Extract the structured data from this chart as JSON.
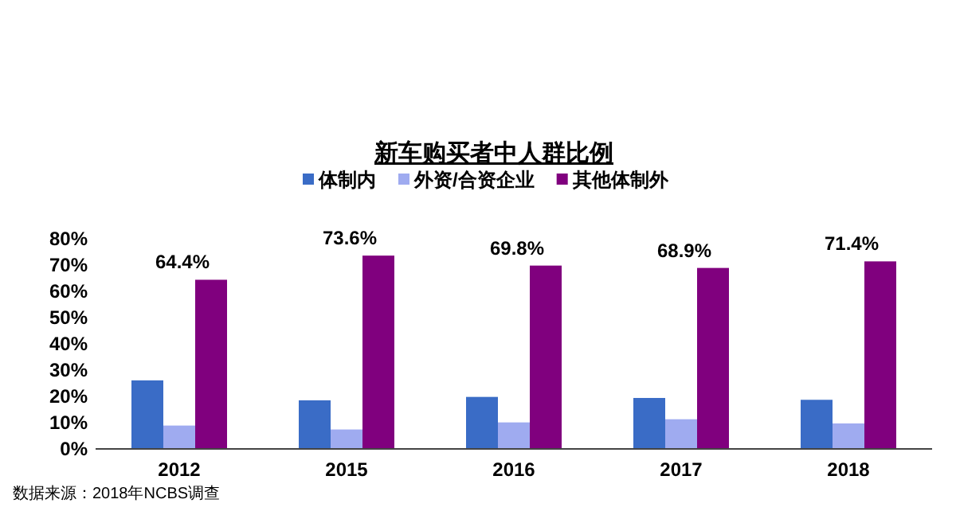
{
  "chart_data": {
    "type": "bar",
    "title": "新车购买者中人群比例",
    "categories": [
      "2012",
      "2015",
      "2016",
      "2017",
      "2018"
    ],
    "series": [
      {
        "name": "体制内",
        "color": "#3a6cc6",
        "values": [
          26.1,
          18.5,
          19.8,
          19.4,
          18.7
        ]
      },
      {
        "name": "外资/合资企业",
        "color": "#9fabf0",
        "values": [
          8.9,
          7.4,
          10.1,
          11.3,
          9.7
        ]
      },
      {
        "name": "其他体制外",
        "color": "#80007e",
        "values": [
          64.4,
          73.6,
          69.8,
          68.9,
          71.4
        ],
        "value_labels": [
          "64.4%",
          "73.6%",
          "69.8%",
          "68.9%",
          "71.4%"
        ]
      }
    ],
    "ylim": [
      0,
      80
    ],
    "yticks": [
      {
        "value": 0,
        "label": "0%"
      },
      {
        "value": 10,
        "label": "10%"
      },
      {
        "value": 20,
        "label": "20%"
      },
      {
        "value": 30,
        "label": "30%"
      },
      {
        "value": 40,
        "label": "40%"
      },
      {
        "value": 50,
        "label": "50%"
      },
      {
        "value": 60,
        "label": "60%"
      },
      {
        "value": 70,
        "label": "70%"
      },
      {
        "value": 80,
        "label": "80%"
      }
    ],
    "legend": "top",
    "grid": false,
    "annotations": [
      "数据来源：2018年NCBS调查"
    ]
  }
}
